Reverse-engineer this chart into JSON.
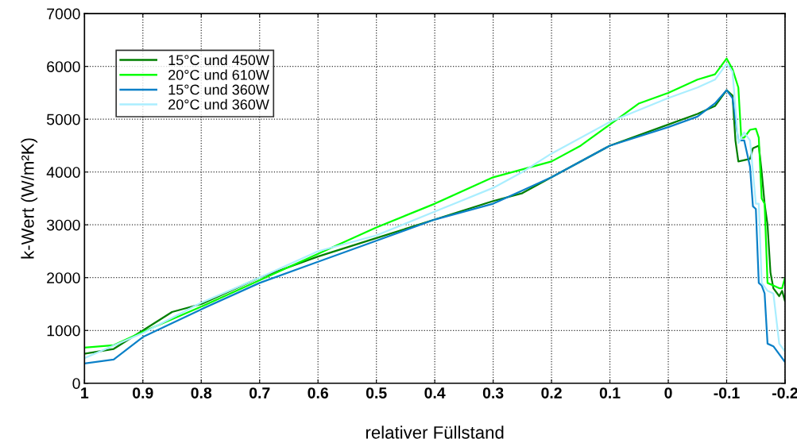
{
  "chart_data": {
    "type": "line",
    "xlabel": "relativer Füllstand",
    "ylabel": "k-Wert (W/m²K)",
    "xlim": [
      1,
      -0.2
    ],
    "xticks": [
      1,
      0.9,
      0.8,
      0.7,
      0.6,
      0.5,
      0.4,
      0.3,
      0.2,
      0.1,
      0,
      -0.1,
      -0.2
    ],
    "ylim": [
      0,
      7000
    ],
    "yticks": [
      0,
      1000,
      2000,
      3000,
      4000,
      5000,
      6000,
      7000
    ],
    "grid": true,
    "legend": "top left",
    "line_style": "solid",
    "marker": "none",
    "series": [
      {
        "name": "15°C und 450W",
        "color": "#007f00",
        "x": [
          1,
          0.95,
          0.9,
          0.85,
          0.8,
          0.7,
          0.6,
          0.5,
          0.4,
          0.3,
          0.25,
          0.2,
          0.1,
          0,
          -0.05,
          -0.08,
          -0.1,
          -0.11,
          -0.115,
          -0.12,
          -0.14,
          -0.145,
          -0.155,
          -0.16,
          -0.165,
          -0.17,
          -0.175,
          -0.18,
          -0.19,
          -0.195,
          -0.2
        ],
        "values": [
          560,
          650,
          1000,
          1350,
          1500,
          2000,
          2400,
          2750,
          3100,
          3450,
          3600,
          3900,
          4500,
          4900,
          5100,
          5250,
          5550,
          5450,
          4600,
          4200,
          4250,
          4450,
          4500,
          4000,
          3400,
          3000,
          2100,
          1800,
          1650,
          1750,
          1550
        ]
      },
      {
        "name": "20°C und 610W",
        "color": "#00ff00",
        "x": [
          1,
          0.95,
          0.9,
          0.8,
          0.7,
          0.6,
          0.5,
          0.4,
          0.3,
          0.2,
          0.15,
          0.1,
          0.05,
          0,
          -0.05,
          -0.08,
          -0.09,
          -0.1,
          -0.11,
          -0.12,
          -0.125,
          -0.13,
          -0.14,
          -0.15,
          -0.155,
          -0.16,
          -0.165,
          -0.17,
          -0.19,
          -0.195,
          -0.2
        ],
        "values": [
          675,
          720,
          975,
          1450,
          1950,
          2450,
          2950,
          3400,
          3900,
          4200,
          4500,
          4900,
          5300,
          5500,
          5750,
          5850,
          6000,
          6150,
          5950,
          5600,
          4650,
          4650,
          4800,
          4820,
          4650,
          3500,
          3400,
          1900,
          1800,
          1800,
          2000
        ]
      },
      {
        "name": "15°C und 360W",
        "color": "#0a80c8",
        "x": [
          1,
          0.95,
          0.9,
          0.8,
          0.7,
          0.6,
          0.5,
          0.4,
          0.3,
          0.25,
          0.2,
          0.1,
          0,
          -0.05,
          -0.08,
          -0.1,
          -0.11,
          -0.12,
          -0.13,
          -0.14,
          -0.145,
          -0.15,
          -0.155,
          -0.16,
          -0.165,
          -0.17,
          -0.18,
          -0.19,
          -0.2
        ],
        "values": [
          375,
          450,
          875,
          1400,
          1900,
          2300,
          2700,
          3100,
          3400,
          3650,
          3900,
          4500,
          4850,
          5050,
          5300,
          5550,
          5400,
          4600,
          4600,
          4100,
          3350,
          3300,
          1900,
          1850,
          1700,
          750,
          700,
          550,
          400
        ]
      },
      {
        "name": "20°C und 360W",
        "color": "#aaeeff",
        "x": [
          1,
          0.9,
          0.8,
          0.7,
          0.6,
          0.5,
          0.4,
          0.3,
          0.25,
          0.2,
          0.1,
          0,
          -0.05,
          -0.08,
          -0.1,
          -0.11,
          -0.12,
          -0.13,
          -0.14,
          -0.145,
          -0.15,
          -0.155,
          -0.16,
          -0.17,
          -0.18,
          -0.19,
          -0.2
        ],
        "values": [
          475,
          950,
          1525,
          2000,
          2500,
          2800,
          3250,
          3700,
          4000,
          4350,
          4950,
          5400,
          5600,
          5750,
          6050,
          5900,
          4550,
          4750,
          4600,
          4000,
          3400,
          3400,
          1900,
          1750,
          1700,
          750,
          600
        ]
      }
    ]
  }
}
